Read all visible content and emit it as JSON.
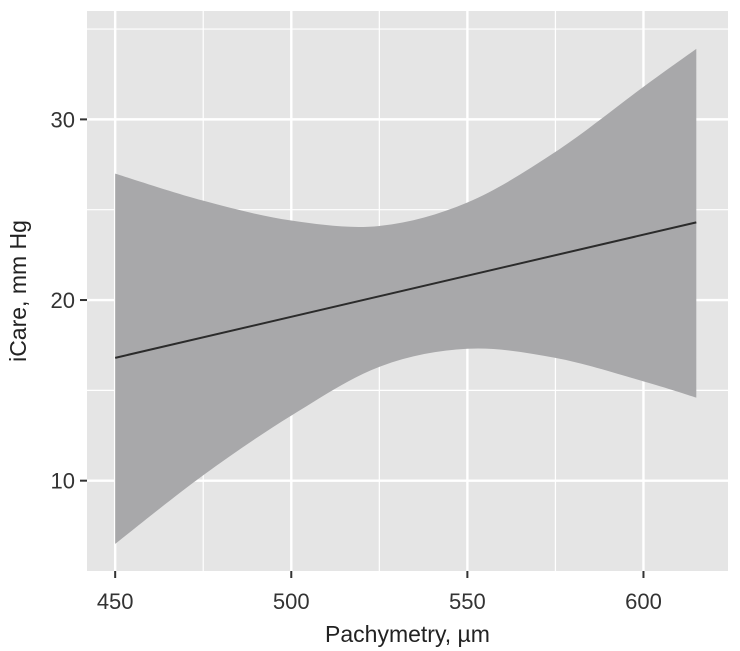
{
  "chart_data": {
    "type": "line",
    "title": "",
    "xlabel": "Pachymetry, µm",
    "ylabel": "iCare, mm Hg",
    "xlim": [
      442,
      624
    ],
    "ylim": [
      5,
      36
    ],
    "x_ticks": [
      450,
      500,
      550,
      600
    ],
    "y_ticks": [
      10,
      20,
      30
    ],
    "grid": true,
    "legend": "none",
    "series": [
      {
        "type": "line",
        "x": [
          450,
          615
        ],
        "y": [
          16.8,
          24.3
        ]
      }
    ],
    "confidence_band": {
      "x": [
        450,
        475,
        500,
        525,
        550,
        575,
        600,
        615
      ],
      "lower": [
        6.5,
        10.3,
        13.6,
        16.3,
        17.3,
        16.8,
        15.5,
        14.6
      ],
      "upper": [
        27.0,
        25.5,
        24.4,
        24.1,
        25.4,
        28.2,
        31.8,
        33.9
      ]
    },
    "colors": {
      "panel": "#e5e5e5",
      "grid": "#ffffff",
      "band": "#a8a8aa",
      "line": "#2b2b2b"
    }
  }
}
